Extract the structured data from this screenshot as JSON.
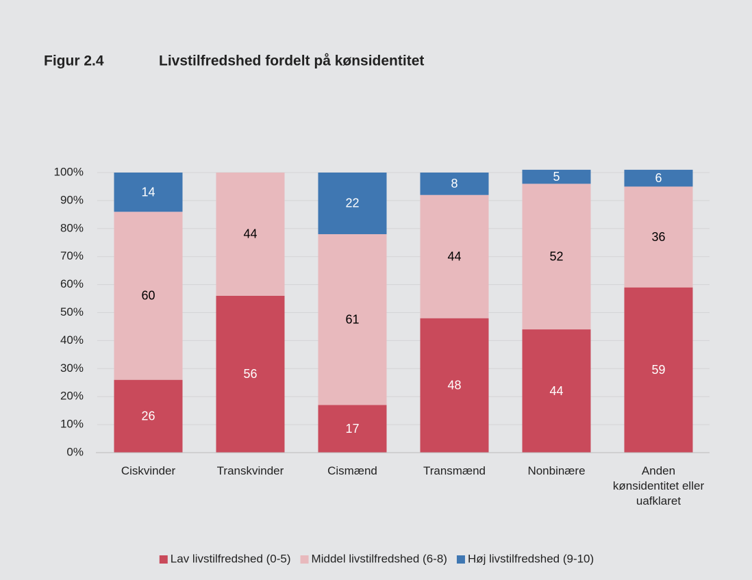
{
  "chart_data": {
    "type": "stacked_bar",
    "title": "Figur 2.4",
    "subtitle": "Livstilfredshed fordelt på kønsidentitet",
    "categories": [
      "Ciskvinder",
      "Transkvinder",
      "Cismænd",
      "Transmænd",
      "Nonbinære",
      "Anden kønsidentitet eller uafklaret"
    ],
    "series": [
      {
        "name": "Lav livstilfredshed (0-5)",
        "color": "#c94a5b",
        "label_color": "#ffffff",
        "values": [
          26,
          56,
          17,
          48,
          44,
          59
        ]
      },
      {
        "name": "Middel livstilfredshed (6-8)",
        "color": "#e8b9bd",
        "label_color": "#000000",
        "values": [
          60,
          44,
          61,
          44,
          52,
          36
        ]
      },
      {
        "name": "Høj livstilfredshed (9-10)",
        "color": "#3f77b2",
        "label_color": "#ffffff",
        "values": [
          14,
          null,
          22,
          8,
          5,
          6
        ]
      }
    ],
    "ylim": [
      0,
      100
    ],
    "yticks": [
      {
        "value": 0,
        "label": "0%"
      },
      {
        "value": 10,
        "label": "10%"
      },
      {
        "value": 20,
        "label": "20%"
      },
      {
        "value": 30,
        "label": "30%"
      },
      {
        "value": 40,
        "label": "40%"
      },
      {
        "value": 50,
        "label": "50%"
      },
      {
        "value": 60,
        "label": "60%"
      },
      {
        "value": 70,
        "label": "70%"
      },
      {
        "value": 80,
        "label": "80%"
      },
      {
        "value": 90,
        "label": "90%"
      },
      {
        "value": 100,
        "label": "100%"
      }
    ],
    "grid": true,
    "legend": "bottom"
  }
}
